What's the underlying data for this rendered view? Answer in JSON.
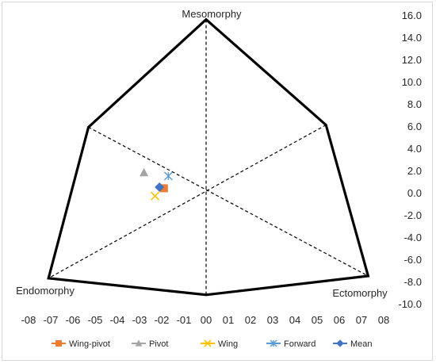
{
  "chart_data": {
    "type": "scatter",
    "title": "",
    "vertex_labels": {
      "top": "Mesomorphy",
      "left": "Endomorphy",
      "right": "Ectomorphy"
    },
    "x_ticks": [
      "-08",
      "-07",
      "-06",
      "-05",
      "-04",
      "-03",
      "-02",
      "-01",
      "00",
      "01",
      "02",
      "03",
      "04",
      "05",
      "06",
      "07",
      "08"
    ],
    "y_ticks": [
      "16.0",
      "14.0",
      "12.0",
      "10.0",
      "8.0",
      "6.0",
      "4.0",
      "2.0",
      "0.0",
      "-2.0",
      "-4.0",
      "-6.0",
      "-8.0",
      "-10.0"
    ],
    "xlim": [
      -8,
      8
    ],
    "ylim": [
      -10,
      16
    ],
    "somatochart_outline": [
      {
        "x": 0,
        "y": 15.6
      },
      {
        "x": 5.4,
        "y": 6.1
      },
      {
        "x": 7.3,
        "y": -7.5
      },
      {
        "x": 0,
        "y": -9.2
      },
      {
        "x": -7.1,
        "y": -7.7
      },
      {
        "x": -5.3,
        "y": 5.9
      }
    ],
    "reference_lines": [
      {
        "x1": 0,
        "y1": 15.6,
        "x2": 0,
        "y2": -9.2
      },
      {
        "x1": -5.3,
        "y1": 5.9,
        "x2": 7.3,
        "y2": -7.5
      },
      {
        "x1": 5.4,
        "y1": 6.1,
        "x2": -7.1,
        "y2": -7.7
      }
    ],
    "series": [
      {
        "name": "Wing-pivot",
        "color": "#ED7D31",
        "marker": "square",
        "x": -1.9,
        "y": 0.4
      },
      {
        "name": "Pivot",
        "color": "#A5A5A5",
        "marker": "triangle",
        "x": -2.8,
        "y": 1.8
      },
      {
        "name": "Wing",
        "color": "#FFC000",
        "marker": "x",
        "x": -2.3,
        "y": -0.3
      },
      {
        "name": "Forward",
        "color": "#5B9BD5",
        "marker": "star",
        "x": -1.7,
        "y": 1.5
      },
      {
        "name": "Mean",
        "color": "#4472C4",
        "marker": "diamond",
        "x": -2.1,
        "y": 0.5
      }
    ]
  }
}
